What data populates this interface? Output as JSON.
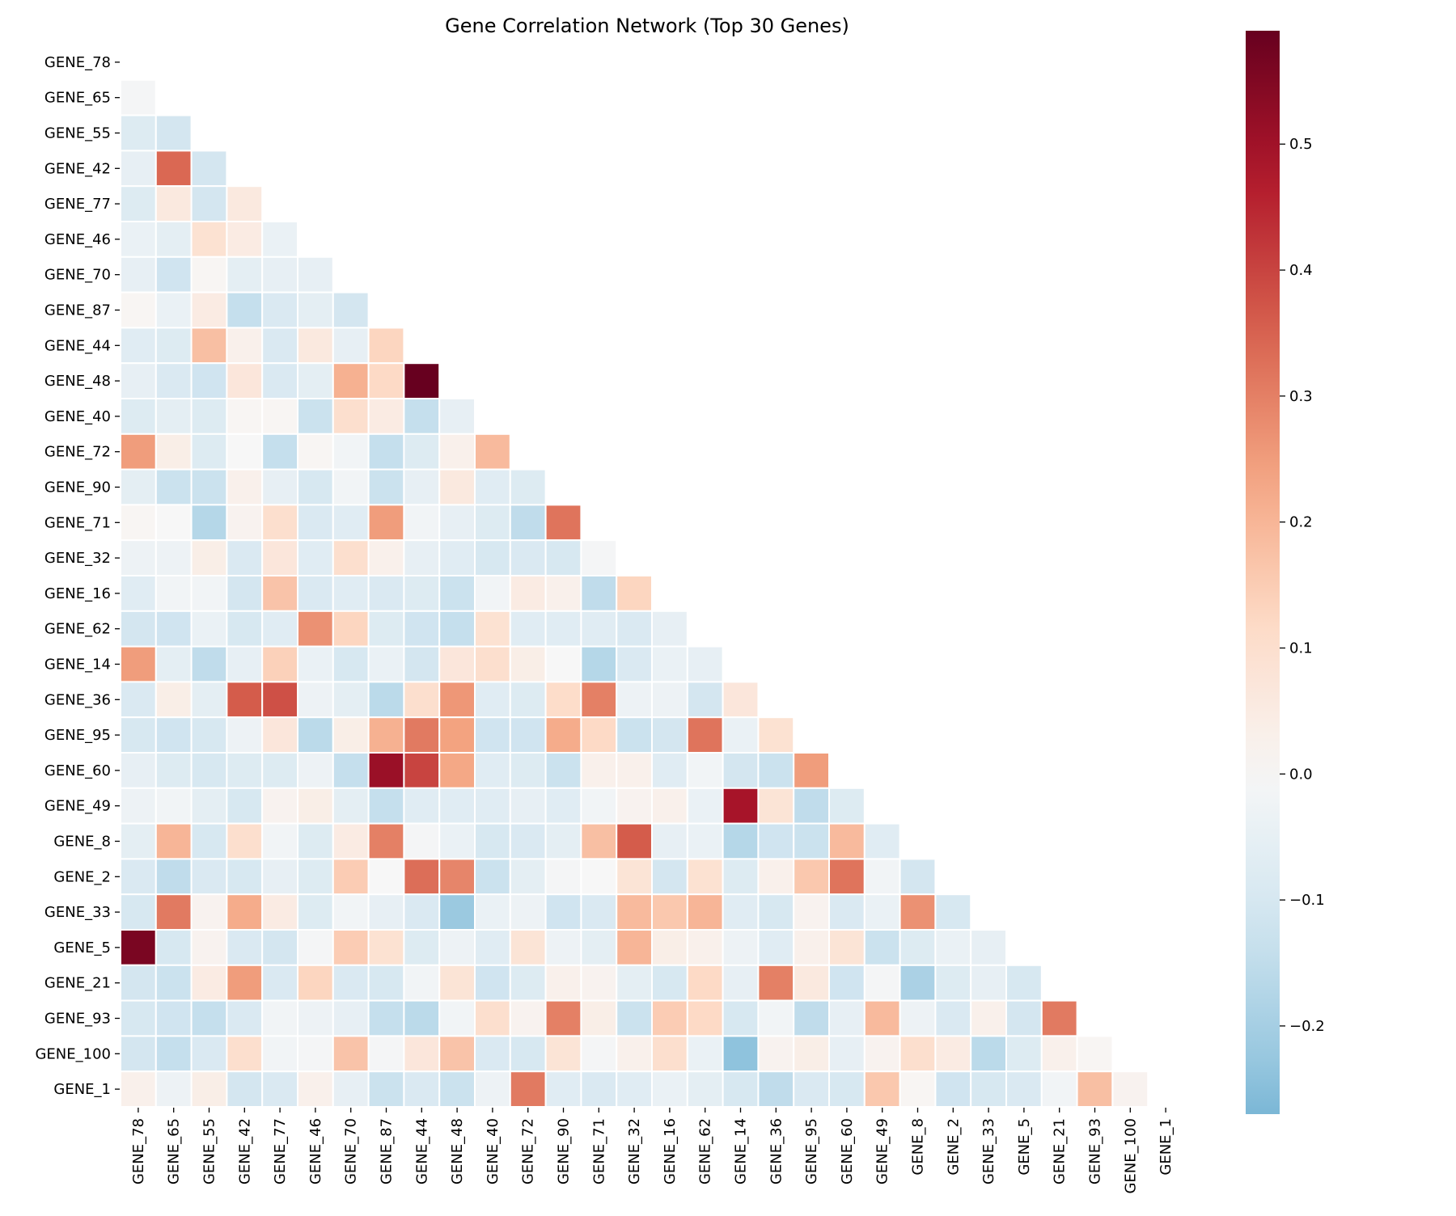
{
  "chart_data": {
    "type": "heatmap",
    "title": "Gene Correlation Network (Top 30 Genes)",
    "xlabel": "",
    "ylabel": "",
    "colormap": "RdBu_r",
    "mask": "upper-triangle including diagonal",
    "vmin": -0.27,
    "vmax": 0.59,
    "colorbar": {
      "ticks": [
        -0.2,
        -0.1,
        0.0,
        0.1,
        0.2,
        0.3,
        0.4,
        0.5
      ],
      "tick_labels": [
        "−0.2",
        "−0.1",
        "0.0",
        "0.1",
        "0.2",
        "0.3",
        "0.4",
        "0.5"
      ],
      "placement": "right"
    },
    "genes": [
      "GENE_78",
      "GENE_65",
      "GENE_55",
      "GENE_42",
      "GENE_77",
      "GENE_46",
      "GENE_70",
      "GENE_87",
      "GENE_44",
      "GENE_48",
      "GENE_40",
      "GENE_72",
      "GENE_90",
      "GENE_71",
      "GENE_32",
      "GENE_16",
      "GENE_62",
      "GENE_14",
      "GENE_36",
      "GENE_95",
      "GENE_60",
      "GENE_49",
      "GENE_8",
      "GENE_2",
      "GENE_33",
      "GENE_5",
      "GENE_21",
      "GENE_93",
      "GENE_100",
      "GENE_1"
    ],
    "matrix_lower": [
      [],
      [
        -0.01
      ],
      [
        -0.08,
        -0.11
      ],
      [
        -0.05,
        0.34,
        -0.11
      ],
      [
        -0.08,
        0.06,
        -0.11,
        0.06
      ],
      [
        -0.04,
        -0.06,
        0.09,
        0.05,
        -0.04
      ],
      [
        -0.05,
        -0.12,
        0.01,
        -0.06,
        -0.05,
        -0.05
      ],
      [
        0.01,
        -0.04,
        0.05,
        -0.14,
        -0.09,
        -0.06,
        -0.11
      ],
      [
        -0.07,
        -0.08,
        0.18,
        0.03,
        -0.09,
        0.06,
        -0.05,
        0.13
      ],
      [
        -0.05,
        -0.09,
        -0.12,
        0.07,
        -0.09,
        -0.06,
        0.21,
        0.12,
        0.59
      ],
      [
        -0.08,
        -0.06,
        -0.08,
        0.01,
        0.01,
        -0.13,
        0.1,
        0.05,
        -0.14,
        -0.05
      ],
      [
        0.25,
        0.04,
        -0.08,
        0.0,
        -0.14,
        0.01,
        -0.02,
        -0.14,
        -0.08,
        0.03,
        0.19
      ],
      [
        -0.06,
        -0.13,
        -0.13,
        0.03,
        -0.05,
        -0.1,
        -0.02,
        -0.13,
        -0.05,
        0.06,
        -0.07,
        -0.08
      ],
      [
        0.01,
        0.0,
        -0.17,
        0.02,
        0.1,
        -0.09,
        -0.07,
        0.25,
        -0.02,
        -0.05,
        -0.08,
        -0.15,
        0.32
      ],
      [
        -0.03,
        -0.03,
        0.04,
        -0.09,
        0.07,
        -0.07,
        0.1,
        0.03,
        -0.05,
        -0.07,
        -0.1,
        -0.09,
        -0.1,
        -0.01
      ],
      [
        -0.07,
        -0.02,
        -0.02,
        -0.11,
        0.17,
        -0.09,
        -0.07,
        -0.09,
        -0.08,
        -0.13,
        -0.02,
        0.05,
        0.03,
        -0.15,
        0.13
      ],
      [
        -0.11,
        -0.12,
        -0.04,
        -0.1,
        -0.07,
        0.27,
        0.13,
        -0.08,
        -0.12,
        -0.14,
        0.09,
        -0.07,
        -0.07,
        -0.07,
        -0.09,
        -0.05
      ],
      [
        0.25,
        -0.06,
        -0.15,
        -0.05,
        0.14,
        -0.04,
        -0.1,
        -0.04,
        -0.11,
        0.07,
        0.1,
        0.04,
        0.0,
        -0.17,
        -0.09,
        -0.04,
        -0.05
      ],
      [
        -0.09,
        0.04,
        -0.06,
        0.36,
        0.38,
        -0.03,
        -0.06,
        -0.16,
        0.1,
        0.26,
        -0.07,
        -0.08,
        0.11,
        0.3,
        -0.03,
        -0.03,
        -0.11,
        0.07
      ],
      [
        -0.1,
        -0.12,
        -0.1,
        -0.03,
        0.07,
        -0.16,
        0.04,
        0.21,
        0.31,
        0.24,
        -0.12,
        -0.12,
        0.22,
        0.12,
        -0.13,
        -0.11,
        0.32,
        -0.04,
        0.09
      ],
      [
        -0.05,
        -0.08,
        -0.1,
        -0.08,
        -0.08,
        -0.03,
        -0.14,
        0.51,
        0.4,
        0.23,
        -0.07,
        -0.08,
        -0.13,
        0.03,
        0.03,
        -0.07,
        -0.02,
        -0.11,
        -0.13,
        0.25
      ],
      [
        -0.03,
        -0.02,
        -0.06,
        -0.1,
        0.02,
        0.04,
        -0.06,
        -0.14,
        -0.07,
        -0.07,
        -0.07,
        -0.05,
        -0.07,
        -0.02,
        0.02,
        0.03,
        -0.04,
        0.49,
        0.08,
        -0.15,
        -0.08
      ],
      [
        -0.06,
        0.2,
        -0.1,
        0.1,
        -0.02,
        -0.08,
        0.05,
        0.3,
        -0.01,
        -0.04,
        -0.1,
        -0.09,
        -0.06,
        0.18,
        0.36,
        -0.05,
        -0.04,
        -0.17,
        -0.12,
        -0.13,
        0.19,
        -0.07
      ],
      [
        -0.09,
        -0.15,
        -0.09,
        -0.1,
        -0.05,
        -0.08,
        0.15,
        0.0,
        0.33,
        0.29,
        -0.13,
        -0.06,
        -0.01,
        0.0,
        0.08,
        -0.11,
        0.09,
        -0.08,
        0.03,
        0.16,
        0.32,
        -0.02,
        -0.11
      ],
      [
        -0.1,
        0.31,
        0.02,
        0.22,
        0.05,
        -0.08,
        -0.02,
        -0.05,
        -0.09,
        -0.22,
        -0.04,
        -0.03,
        -0.12,
        -0.09,
        0.19,
        0.16,
        0.2,
        -0.07,
        -0.1,
        0.02,
        -0.09,
        -0.04,
        0.27,
        -0.1
      ],
      [
        0.56,
        -0.1,
        0.02,
        -0.09,
        -0.11,
        -0.01,
        0.15,
        0.09,
        -0.08,
        -0.03,
        -0.07,
        0.08,
        -0.03,
        -0.06,
        0.2,
        0.04,
        0.03,
        -0.03,
        -0.07,
        0.03,
        0.08,
        -0.13,
        -0.08,
        -0.04,
        -0.05
      ],
      [
        -0.11,
        -0.13,
        0.05,
        0.25,
        -0.09,
        0.13,
        -0.09,
        -0.1,
        -0.02,
        0.08,
        -0.12,
        -0.08,
        0.03,
        0.02,
        -0.06,
        -0.1,
        0.12,
        -0.05,
        0.3,
        0.06,
        -0.12,
        -0.01,
        -0.19,
        -0.08,
        -0.05,
        -0.1
      ],
      [
        -0.1,
        -0.12,
        -0.14,
        -0.09,
        -0.02,
        -0.03,
        -0.05,
        -0.14,
        -0.16,
        -0.02,
        0.1,
        0.02,
        0.3,
        0.04,
        -0.13,
        0.15,
        0.12,
        -0.1,
        -0.02,
        -0.15,
        -0.05,
        0.19,
        -0.03,
        -0.09,
        0.03,
        -0.11,
        0.31
      ],
      [
        -0.11,
        -0.14,
        -0.09,
        0.1,
        -0.02,
        -0.01,
        0.17,
        -0.01,
        0.07,
        0.17,
        -0.09,
        -0.1,
        0.08,
        -0.01,
        0.03,
        0.1,
        -0.04,
        -0.24,
        0.02,
        0.04,
        -0.05,
        0.02,
        0.1,
        0.05,
        -0.16,
        -0.08,
        0.03,
        0.01
      ],
      [
        0.03,
        -0.03,
        0.04,
        -0.11,
        -0.09,
        0.03,
        -0.05,
        -0.13,
        -0.09,
        -0.13,
        -0.03,
        0.31,
        -0.07,
        -0.09,
        -0.07,
        -0.04,
        -0.06,
        -0.1,
        -0.15,
        -0.09,
        -0.1,
        0.16,
        0.01,
        -0.12,
        -0.1,
        -0.09,
        -0.02,
        0.18,
        0.02
      ]
    ]
  }
}
